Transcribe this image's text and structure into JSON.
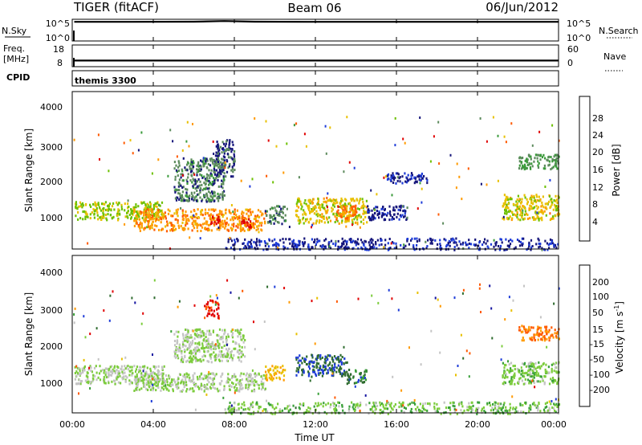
{
  "header": {
    "title": "TIGER (fitACF)",
    "beam": "Beam 06",
    "date": "06/Jun/2012"
  },
  "strip1": {
    "left_label": "N.Sky",
    "right_label": "N.Search",
    "left_ticks": [
      "10^5",
      "10^0"
    ],
    "right_ticks": [
      "10^5",
      "10^0"
    ]
  },
  "strip2": {
    "left_label_top": "Freq.",
    "left_label_bottom": "[MHz]",
    "right_label": "Nave",
    "left_ticks": [
      "18",
      "8"
    ],
    "right_ticks": [
      "60",
      "0"
    ]
  },
  "cpid": {
    "label": "CPID",
    "value": "themis 3300"
  },
  "power_panel": {
    "ylabel": "Slant Range [km]",
    "yticks": [
      "4000",
      "3000",
      "2000",
      "1000"
    ],
    "colorbar_label": "Power [dB]",
    "colorbar_ticks": [
      "28",
      "24",
      "20",
      "16",
      "12",
      "8",
      "4"
    ],
    "colorbar_colors": [
      "#e00000",
      "#ff5a00",
      "#ff9a00",
      "#e8c000",
      "#6cc000",
      "#3a9a3a",
      "#5c8a5c",
      "#14147a",
      "#1e3cd8"
    ]
  },
  "velocity_panel": {
    "ylabel": "Slant Range [km]",
    "yticks": [
      "4000",
      "3000",
      "2000",
      "1000"
    ],
    "colorbar_label_main": "Velocity [m s",
    "colorbar_label_sup": "-1",
    "colorbar_label_end": "]",
    "colorbar_ticks": [
      "200",
      "100",
      "50",
      "15",
      "-15",
      "-50",
      "-100",
      "-200"
    ],
    "colorbar_colors": [
      "#1414a0",
      "#1e3cd8",
      "#2e6b2e",
      "#39a039",
      "#7ccc3c",
      "#c4c4c4",
      "#e8c000",
      "#ff9a00",
      "#ff5a00",
      "#e00000"
    ]
  },
  "xaxis": {
    "ticks": [
      "00:00",
      "04:00",
      "08:00",
      "12:00",
      "16:00",
      "20:00",
      "00:00"
    ],
    "label": "Time UT"
  },
  "chart_data": [
    {
      "type": "line",
      "title": "N.Sky / N.Search",
      "x_range_hours": [
        0,
        24
      ],
      "description_level": "near top, flat",
      "ylim_log10": [
        0,
        5
      ],
      "x": [
        0.1,
        3,
        6,
        7.5,
        9,
        12,
        15,
        18,
        21,
        24
      ],
      "values_log10": [
        4.4,
        4.4,
        4.45,
        4.6,
        4.45,
        4.4,
        4.4,
        4.4,
        4.4,
        4.4
      ]
    },
    {
      "type": "line",
      "title": "Freq. / Nave",
      "x_range_hours": [
        0,
        24
      ],
      "ylim_freq": [
        8,
        18
      ],
      "x": [
        0.1,
        3,
        6,
        9,
        12,
        15,
        18,
        21,
        24
      ],
      "values": [
        10.8,
        10.8,
        10.8,
        10.8,
        10.8,
        10.8,
        10.8,
        10.8,
        10.8
      ]
    },
    {
      "type": "heatmap",
      "title": "Power [dB]",
      "x_range_hours": [
        0,
        24
      ],
      "ylim_km": [
        180,
        4500
      ],
      "value_range": [
        0,
        30
      ],
      "patches": [
        {
          "t0": 0.1,
          "t1": 4.5,
          "r0": 1000,
          "r1": 1500,
          "v": 16
        },
        {
          "t0": 3.0,
          "t1": 9.5,
          "r0": 700,
          "r1": 1300,
          "v": 22
        },
        {
          "t0": 6.8,
          "t1": 7.3,
          "r0": 900,
          "r1": 1100,
          "v": 28
        },
        {
          "t0": 8.3,
          "t1": 8.9,
          "r0": 800,
          "r1": 1050,
          "v": 28
        },
        {
          "t0": 5.0,
          "t1": 7.5,
          "r0": 1500,
          "r1": 2700,
          "v": 8
        },
        {
          "t0": 7.0,
          "t1": 8.0,
          "r0": 2200,
          "r1": 3200,
          "v": 6
        },
        {
          "t0": 9.5,
          "t1": 10.5,
          "r0": 900,
          "r1": 1400,
          "v": 8
        },
        {
          "t0": 11.0,
          "t1": 14.5,
          "r0": 900,
          "r1": 1600,
          "v": 18
        },
        {
          "t0": 13.0,
          "t1": 14.0,
          "r0": 1000,
          "r1": 1400,
          "v": 24
        },
        {
          "t0": 14.5,
          "t1": 16.5,
          "r0": 1000,
          "r1": 1400,
          "v": 4
        },
        {
          "t0": 15.5,
          "t1": 17.5,
          "r0": 2000,
          "r1": 2300,
          "v": 4
        },
        {
          "t0": 21.2,
          "t1": 24.0,
          "r0": 1000,
          "r1": 1700,
          "v": 18
        },
        {
          "t0": 22.0,
          "t1": 24.0,
          "r0": 2400,
          "r1": 2800,
          "v": 10
        },
        {
          "t0": 7.5,
          "t1": 24.0,
          "r0": 180,
          "r1": 500,
          "v": 4
        }
      ]
    },
    {
      "type": "heatmap",
      "title": "Velocity [m s-1]",
      "x_range_hours": [
        0,
        24
      ],
      "ylim_km": [
        180,
        4500
      ],
      "value_range": [
        -250,
        250
      ],
      "patches": [
        {
          "t0": 0.1,
          "t1": 4.5,
          "r0": 1000,
          "r1": 1500,
          "v": 0
        },
        {
          "t0": 3.0,
          "t1": 9.5,
          "r0": 800,
          "r1": 1300,
          "v": 0
        },
        {
          "t0": 5.0,
          "t1": 8.5,
          "r0": 1600,
          "r1": 2500,
          "v": 0
        },
        {
          "t0": 6.5,
          "t1": 7.2,
          "r0": 2800,
          "r1": 3300,
          "v": -220
        },
        {
          "t0": 9.5,
          "t1": 10.5,
          "r0": 1100,
          "r1": 1500,
          "v": -100
        },
        {
          "t0": 11.0,
          "t1": 13.5,
          "r0": 1200,
          "r1": 1800,
          "v": 150
        },
        {
          "t0": 13.5,
          "t1": 14.5,
          "r0": 1000,
          "r1": 1400,
          "v": 120
        },
        {
          "t0": 21.2,
          "t1": 24.0,
          "r0": 1000,
          "r1": 1600,
          "v": 30
        },
        {
          "t0": 22.0,
          "t1": 24.0,
          "r0": 2200,
          "r1": 2600,
          "v": -150
        },
        {
          "t0": 7.5,
          "t1": 24.0,
          "r0": 180,
          "r1": 500,
          "v": 30
        }
      ]
    }
  ]
}
